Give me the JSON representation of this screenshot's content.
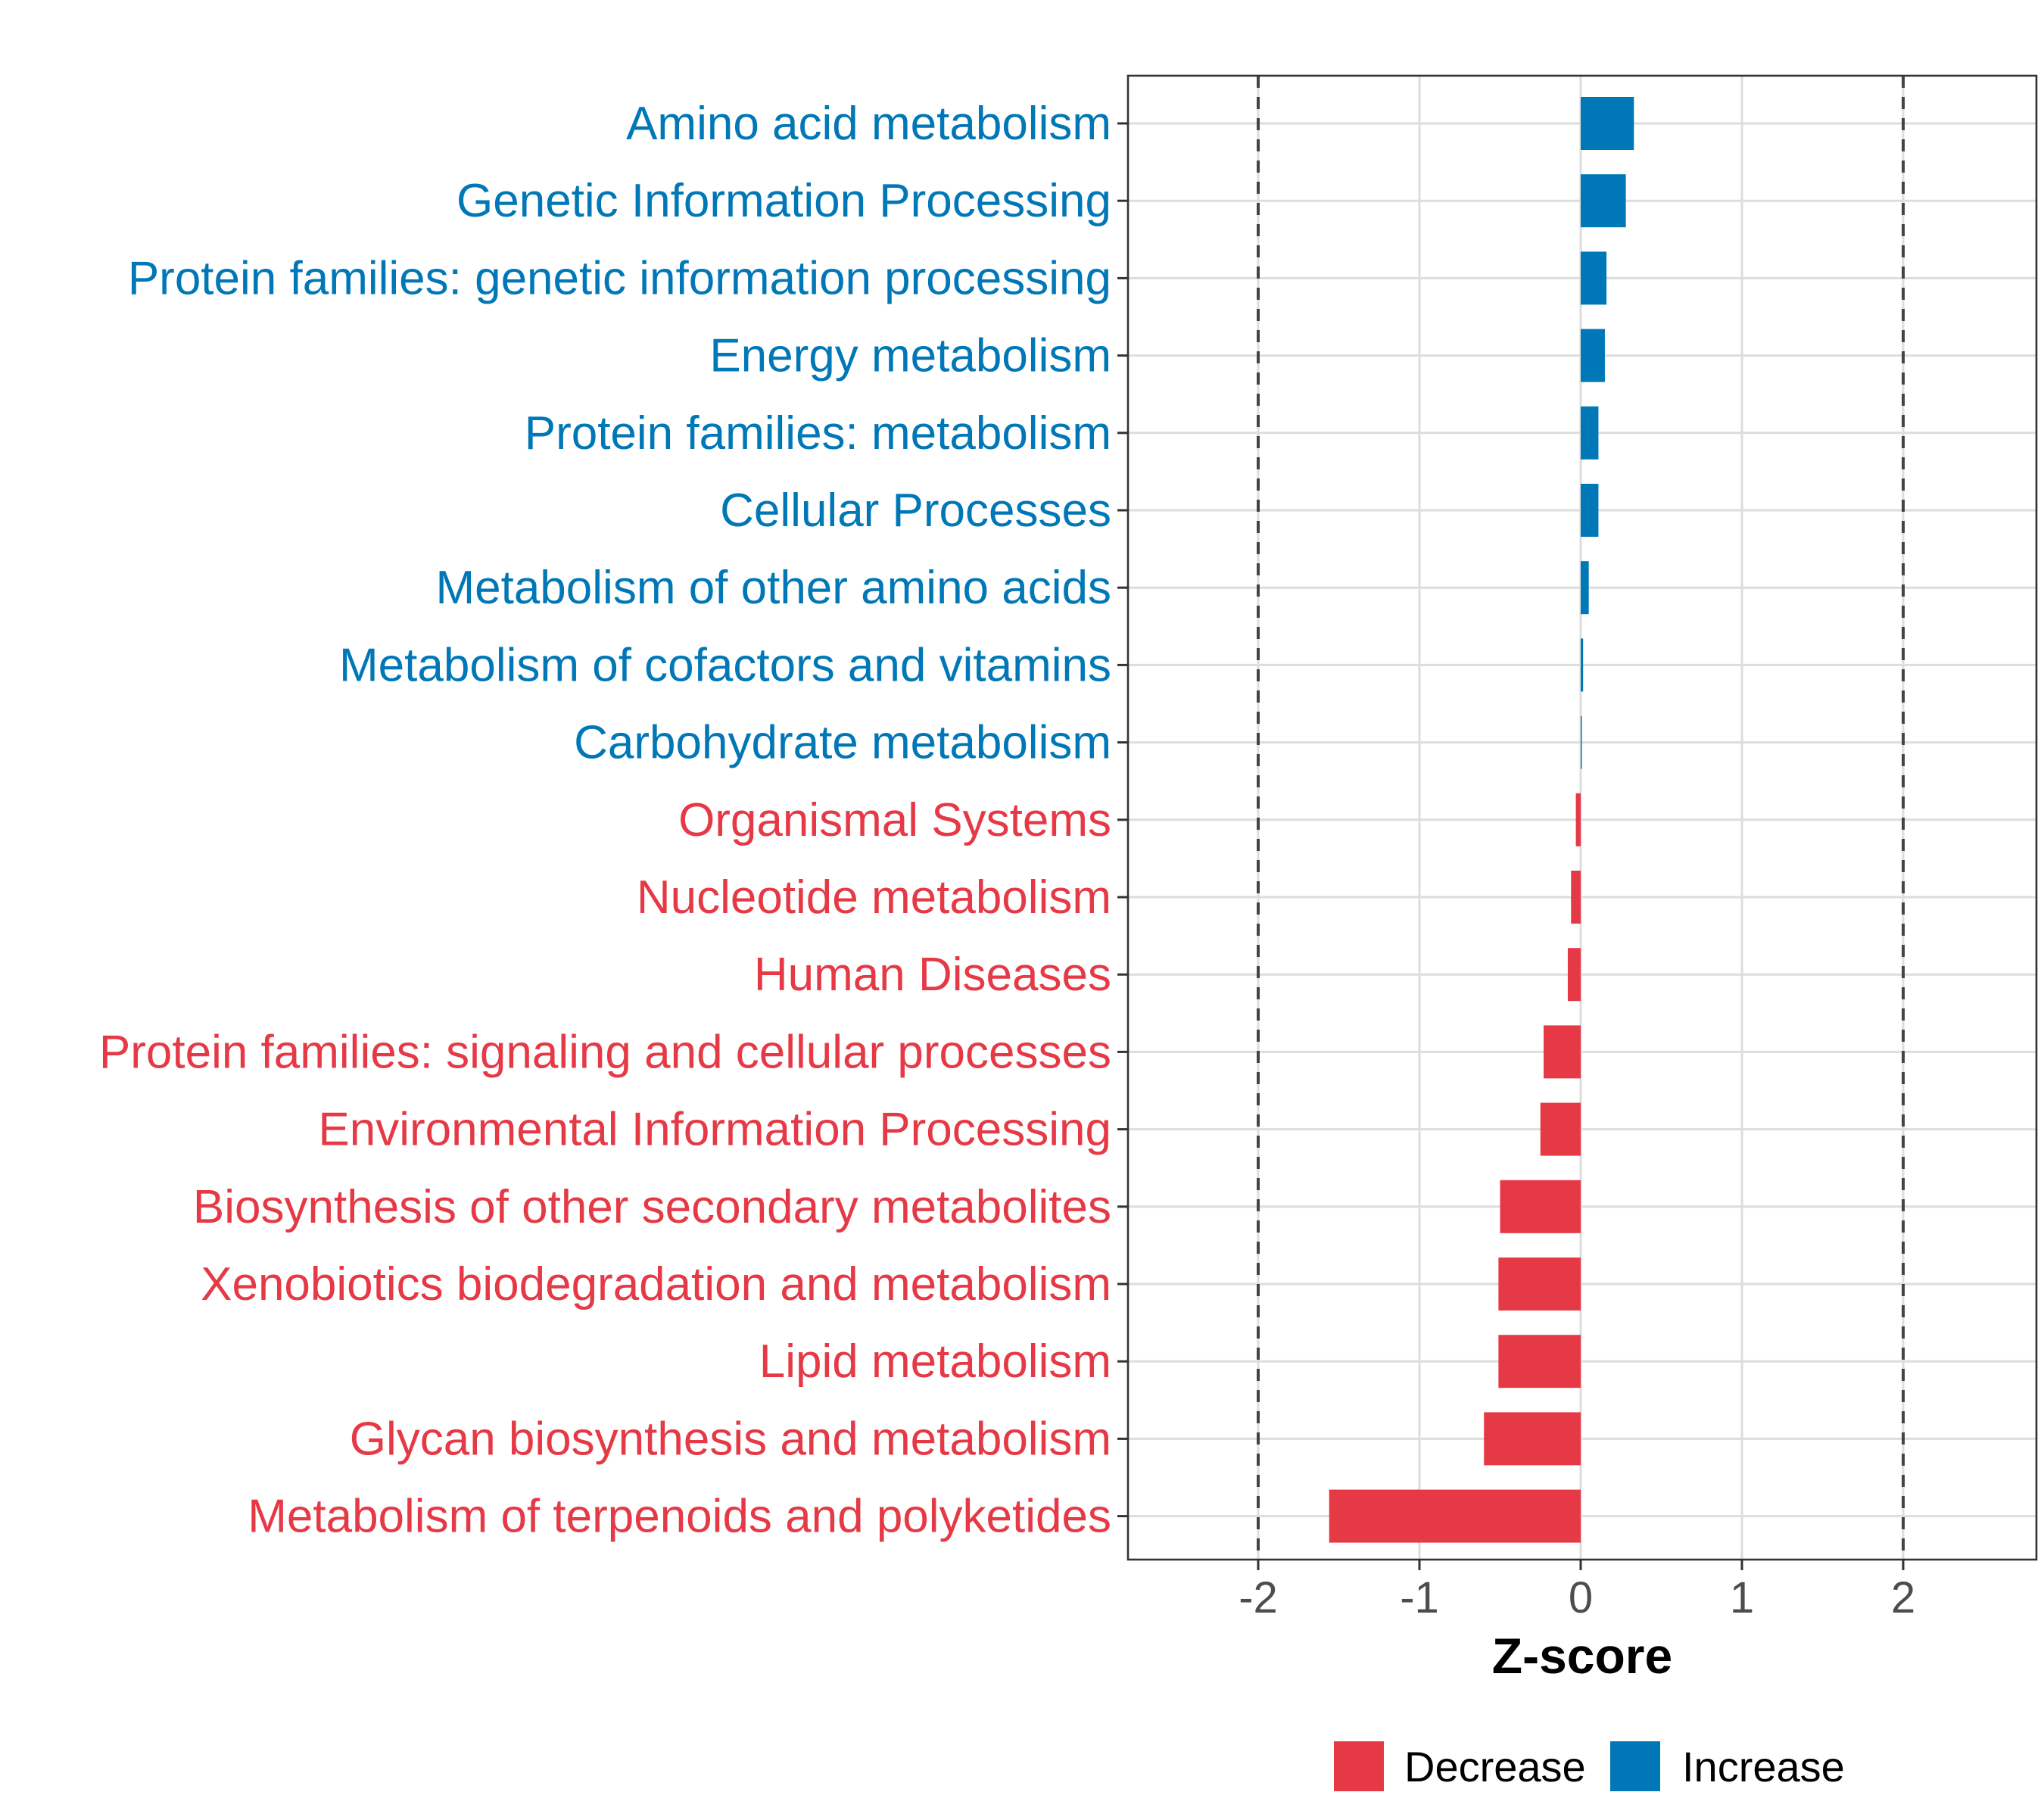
{
  "chart_data": {
    "type": "bar",
    "orientation": "horizontal",
    "title": "",
    "xlabel": "Z-score",
    "ylabel": "",
    "xlim": [
      -2.8,
      2.8
    ],
    "xticks": [
      -2,
      -1,
      0,
      1,
      2
    ],
    "xtick_labels": [
      "-2",
      "-1",
      "0",
      "1",
      "2"
    ],
    "reference_lines": [
      -2,
      2
    ],
    "grid": true,
    "legend_position": "bottom",
    "colors": {
      "Decrease": "#e63946",
      "Increase": "#0077b6"
    },
    "legend": [
      {
        "name": "Decrease",
        "color": "#e63946"
      },
      {
        "name": "Increase",
        "color": "#0077b6"
      }
    ],
    "categories": [
      "Amino acid metabolism",
      "Genetic Information Processing",
      "Protein families: genetic information processing",
      "Energy metabolism",
      "Protein families: metabolism",
      "Cellular Processes",
      "Metabolism of other amino acids",
      "Metabolism of cofactors and vitamins",
      "Carbohydrate metabolism",
      "Organismal Systems",
      "Nucleotide metabolism",
      "Human Diseases",
      "Protein families: signaling and cellular processes",
      "Environmental Information Processing",
      "Biosynthesis of other secondary metabolites",
      "Xenobiotics biodegradation and metabolism",
      "Lipid metabolism",
      "Glycan biosynthesis and metabolism",
      "Metabolism of terpenoids and polyketides"
    ],
    "values": [
      0.33,
      0.28,
      0.16,
      0.15,
      0.11,
      0.11,
      0.05,
      0.015,
      0.005,
      -0.03,
      -0.06,
      -0.08,
      -0.23,
      -0.25,
      -0.5,
      -0.51,
      -0.51,
      -0.6,
      -1.56
    ],
    "groups": [
      "Increase",
      "Increase",
      "Increase",
      "Increase",
      "Increase",
      "Increase",
      "Increase",
      "Increase",
      "Increase",
      "Decrease",
      "Decrease",
      "Decrease",
      "Decrease",
      "Decrease",
      "Decrease",
      "Decrease",
      "Decrease",
      "Decrease",
      "Decrease"
    ]
  }
}
